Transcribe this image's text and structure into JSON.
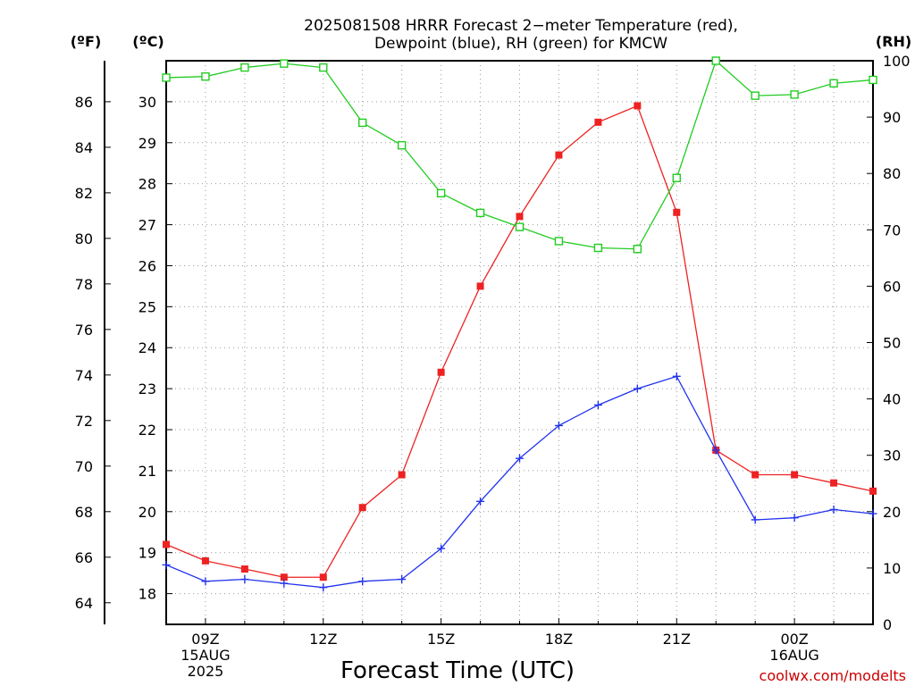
{
  "chart_data": {
    "type": "line",
    "title_line1": "2025081508 HRRR Forecast 2−meter Temperature (red),",
    "title_line2": "Dewpoint (blue), RH (green) for KMCW",
    "xlabel": "Forecast Time (UTC)",
    "credit": "coolwx.com/modelts",
    "axes": {
      "left_outer": {
        "unit_label": "(ºF)",
        "range": [
          63.05,
          87.8
        ],
        "ticks": [
          64,
          66,
          68,
          70,
          72,
          74,
          76,
          78,
          80,
          82,
          84,
          86
        ]
      },
      "left_inner": {
        "unit_label": "(ºC)",
        "range": [
          17.25,
          31.0
        ],
        "ticks": [
          18,
          19,
          20,
          21,
          22,
          23,
          24,
          25,
          26,
          27,
          28,
          29,
          30
        ]
      },
      "right": {
        "unit_label": "(RH)",
        "range": [
          0,
          100
        ],
        "ticks": [
          0,
          10,
          20,
          30,
          40,
          50,
          60,
          70,
          80,
          90,
          100
        ]
      }
    },
    "x_range": [
      8,
      26
    ],
    "x_ticks": [
      {
        "x": 9,
        "lines": [
          "09Z",
          "15AUG",
          "2025"
        ]
      },
      {
        "x": 12,
        "lines": [
          "12Z"
        ]
      },
      {
        "x": 15,
        "lines": [
          "15Z"
        ]
      },
      {
        "x": 18,
        "lines": [
          "18Z"
        ]
      },
      {
        "x": 21,
        "lines": [
          "21Z"
        ]
      },
      {
        "x": 24,
        "lines": [
          "00Z",
          "16AUG"
        ]
      }
    ],
    "grid": true,
    "x": [
      8,
      9,
      10,
      11,
      12,
      13,
      14,
      15,
      16,
      17,
      18,
      19,
      20,
      21,
      22,
      23,
      24,
      25,
      26
    ],
    "series": [
      {
        "key": "temperature",
        "color": "#ee2222",
        "marker": "filled-square",
        "axis": "left_inner",
        "values": [
          19.2,
          18.8,
          18.6,
          18.4,
          18.4,
          20.1,
          20.9,
          23.4,
          25.5,
          27.2,
          28.7,
          29.5,
          29.9,
          27.3,
          21.5,
          20.9,
          20.9,
          20.7,
          20.5
        ]
      },
      {
        "key": "dewpoint",
        "color": "#2233ee",
        "marker": "plus",
        "axis": "left_inner",
        "values": [
          18.7,
          18.3,
          18.35,
          18.25,
          18.15,
          18.3,
          18.35,
          19.1,
          20.25,
          21.3,
          22.1,
          22.6,
          23.0,
          23.3,
          21.5,
          19.8,
          19.85,
          20.05,
          19.95
        ]
      },
      {
        "key": "rh",
        "color": "#22cc22",
        "marker": "open-square",
        "axis": "right",
        "values": [
          97,
          97.2,
          98.8,
          99.5,
          98.8,
          89,
          85,
          76.5,
          73,
          70.5,
          68,
          66.8,
          66.6,
          79.2,
          100,
          93.8,
          94,
          96,
          96.6
        ]
      }
    ]
  }
}
